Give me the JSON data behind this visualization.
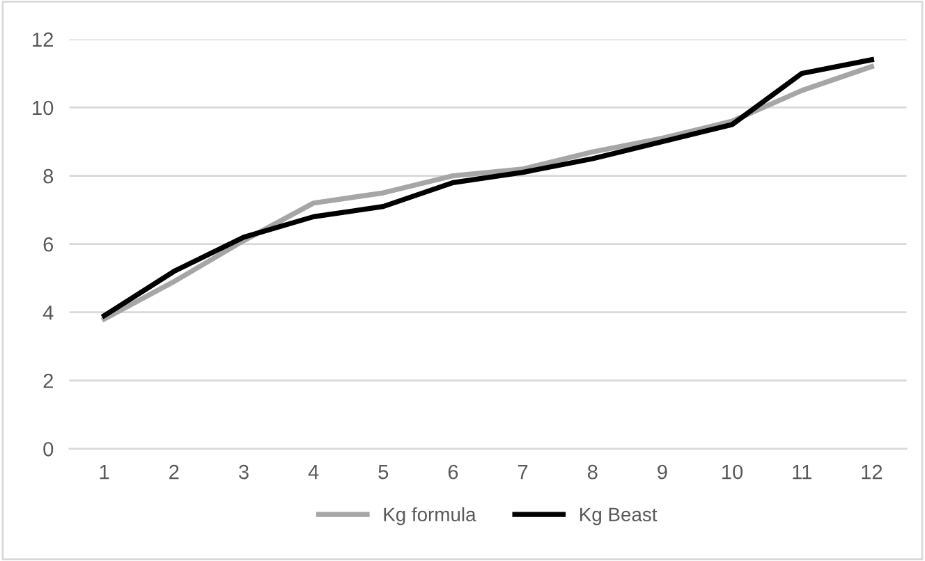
{
  "chart_data": {
    "type": "line",
    "categories": [
      "1",
      "2",
      "3",
      "4",
      "5",
      "6",
      "7",
      "8",
      "9",
      "10",
      "11",
      "12"
    ],
    "series": [
      {
        "name": "Kg formula",
        "color": "#a6a6a6",
        "values": [
          3.8,
          4.9,
          6.1,
          7.2,
          7.5,
          8.0,
          8.2,
          8.7,
          9.1,
          9.6,
          10.5,
          11.2
        ]
      },
      {
        "name": "Kg Beast",
        "color": "#000000",
        "values": [
          3.9,
          5.2,
          6.2,
          6.8,
          7.1,
          7.8,
          8.1,
          8.5,
          9.0,
          9.5,
          11.0,
          11.4
        ]
      }
    ],
    "ylim": [
      0,
      12
    ],
    "yticks": [
      0,
      2,
      4,
      6,
      8,
      10,
      12
    ],
    "grid": "y",
    "legend": "bottom",
    "marker": "none",
    "line_style": "solid"
  }
}
